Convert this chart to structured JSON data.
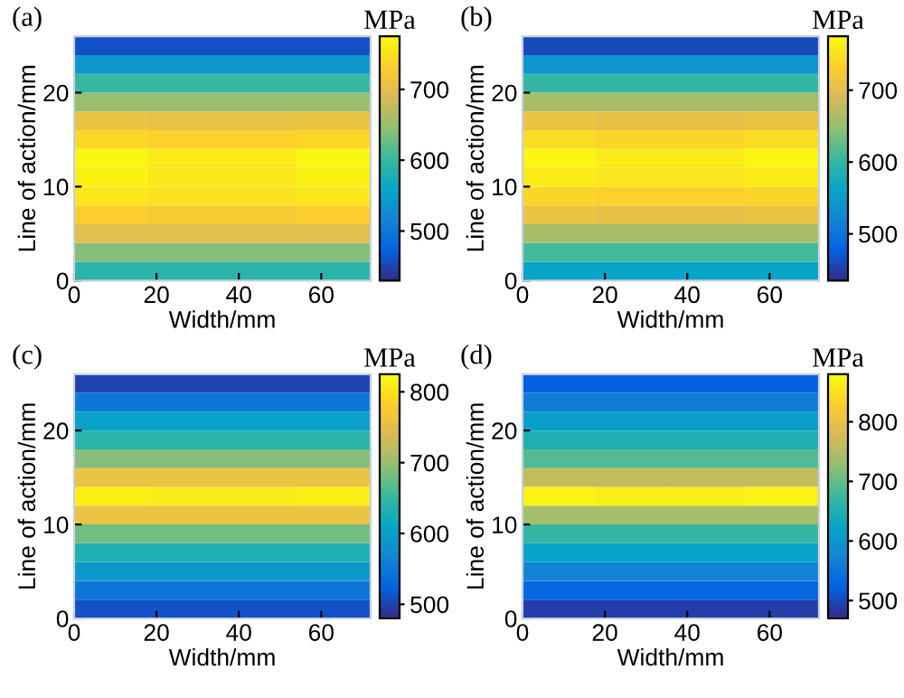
{
  "chart_data": [
    {
      "type": "heatmap",
      "title": "(a)",
      "xlabel": "Width/mm",
      "ylabel": "Line of action/mm",
      "clabel": "MPa",
      "x": [
        9,
        27,
        45,
        63
      ],
      "y": [
        25,
        23,
        21,
        19,
        17,
        15,
        13,
        11,
        9,
        7,
        5,
        3,
        1
      ],
      "cells": [
        [
          460,
          460,
          460,
          460
        ],
        [
          540,
          540,
          540,
          540
        ],
        [
          600,
          600,
          600,
          600
        ],
        [
          650,
          650,
          650,
          650
        ],
        [
          710,
          705,
          705,
          710
        ],
        [
          740,
          735,
          735,
          740
        ],
        [
          770,
          760,
          760,
          770
        ],
        [
          765,
          755,
          755,
          765
        ],
        [
          755,
          750,
          750,
          755
        ],
        [
          730,
          725,
          725,
          730
        ],
        [
          700,
          700,
          700,
          700
        ],
        [
          640,
          640,
          640,
          640
        ],
        [
          590,
          590,
          590,
          590
        ]
      ],
      "xlim": [
        0,
        72
      ],
      "ylim": [
        0,
        26
      ],
      "xticks": [
        0,
        20,
        40,
        60
      ],
      "yticks": [
        0,
        10,
        20
      ],
      "clim": [
        430,
        775
      ],
      "cticks": [
        500,
        600,
        700
      ]
    },
    {
      "type": "heatmap",
      "title": "(b)",
      "xlabel": "Width/mm",
      "ylabel": "Line of action/mm",
      "clabel": "MPa",
      "x": [
        9,
        27,
        45,
        63
      ],
      "y": [
        25,
        23,
        21,
        19,
        17,
        15,
        13,
        11,
        9,
        7,
        5,
        3,
        1
      ],
      "cells": [
        [
          460,
          460,
          460,
          460
        ],
        [
          540,
          540,
          540,
          540
        ],
        [
          600,
          600,
          600,
          600
        ],
        [
          660,
          660,
          660,
          660
        ],
        [
          710,
          705,
          705,
          710
        ],
        [
          745,
          740,
          740,
          745
        ],
        [
          770,
          760,
          760,
          770
        ],
        [
          760,
          755,
          755,
          760
        ],
        [
          740,
          735,
          735,
          740
        ],
        [
          710,
          705,
          705,
          710
        ],
        [
          660,
          660,
          660,
          660
        ],
        [
          610,
          610,
          610,
          610
        ],
        [
          560,
          560,
          560,
          560
        ]
      ],
      "xlim": [
        0,
        72
      ],
      "ylim": [
        0,
        26
      ],
      "xticks": [
        0,
        20,
        40,
        60
      ],
      "yticks": [
        0,
        10,
        20
      ],
      "clim": [
        435,
        775
      ],
      "cticks": [
        500,
        600,
        700
      ]
    },
    {
      "type": "heatmap",
      "title": "(c)",
      "xlabel": "Width/mm",
      "ylabel": "Line of action/mm",
      "clabel": "MPa",
      "x": [
        9,
        27,
        45,
        63
      ],
      "y": [
        25,
        23,
        21,
        19,
        17,
        15,
        13,
        11,
        9,
        7,
        5,
        3,
        1
      ],
      "cells": [
        [
          500,
          500,
          500,
          500
        ],
        [
          550,
          550,
          550,
          550
        ],
        [
          600,
          600,
          600,
          600
        ],
        [
          640,
          640,
          640,
          640
        ],
        [
          690,
          690,
          690,
          690
        ],
        [
          760,
          760,
          760,
          760
        ],
        [
          815,
          810,
          810,
          815
        ],
        [
          760,
          760,
          760,
          760
        ],
        [
          680,
          680,
          680,
          680
        ],
        [
          630,
          630,
          630,
          630
        ],
        [
          590,
          590,
          590,
          590
        ],
        [
          550,
          550,
          550,
          550
        ],
        [
          510,
          510,
          510,
          510
        ]
      ],
      "xlim": [
        0,
        72
      ],
      "ylim": [
        0,
        26
      ],
      "xticks": [
        0,
        20,
        40,
        60
      ],
      "yticks": [
        0,
        10,
        20
      ],
      "clim": [
        480,
        825
      ],
      "cticks": [
        500,
        600,
        700,
        800
      ]
    },
    {
      "type": "heatmap",
      "title": "(d)",
      "xlabel": "Width/mm",
      "ylabel": "Line of action/mm",
      "clabel": "MPa",
      "x": [
        9,
        27,
        45,
        63
      ],
      "y": [
        25,
        23,
        21,
        19,
        17,
        15,
        13,
        11,
        9,
        7,
        5,
        3,
        1
      ],
      "cells": [
        [
          520,
          520,
          520,
          520
        ],
        [
          560,
          560,
          560,
          560
        ],
        [
          610,
          610,
          610,
          610
        ],
        [
          650,
          650,
          650,
          650
        ],
        [
          690,
          690,
          690,
          690
        ],
        [
          760,
          760,
          760,
          760
        ],
        [
          870,
          865,
          865,
          870
        ],
        [
          740,
          740,
          740,
          740
        ],
        [
          670,
          670,
          670,
          670
        ],
        [
          620,
          620,
          620,
          620
        ],
        [
          570,
          570,
          570,
          570
        ],
        [
          530,
          530,
          530,
          530
        ],
        [
          490,
          490,
          490,
          490
        ]
      ],
      "xlim": [
        0,
        72
      ],
      "ylim": [
        0,
        26
      ],
      "xticks": [
        0,
        20,
        40,
        60
      ],
      "yticks": [
        0,
        10,
        20
      ],
      "clim": [
        470,
        880
      ],
      "cticks": [
        500,
        600,
        700,
        800
      ]
    }
  ]
}
